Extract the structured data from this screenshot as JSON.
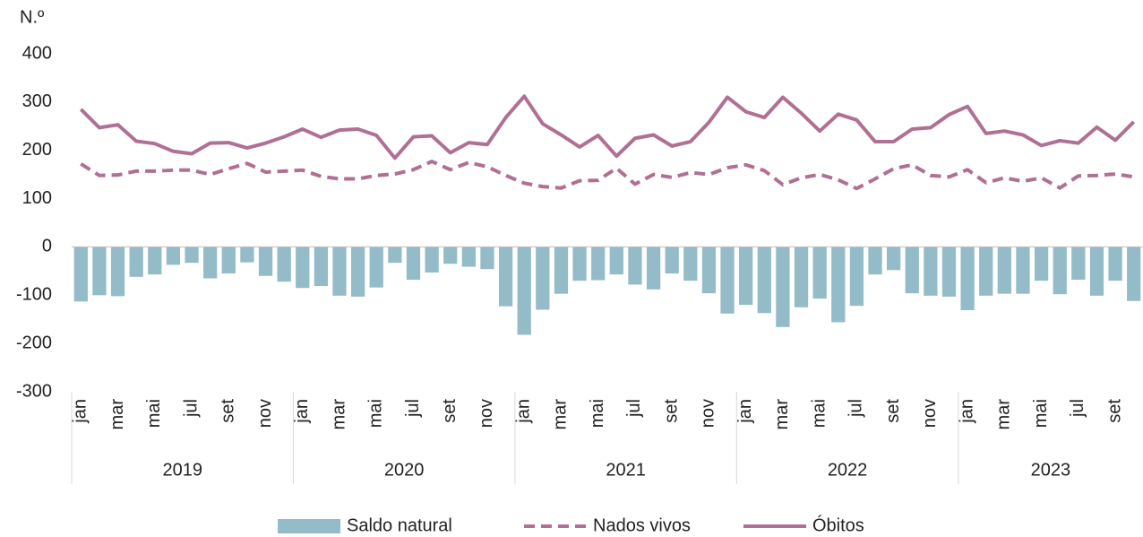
{
  "chart_data": {
    "type": "bar-line",
    "y_label": "N.º",
    "categories": [
      "jan",
      null,
      "mar",
      null,
      "mai",
      null,
      "jul",
      null,
      "set",
      null,
      "nov",
      null,
      "jan",
      null,
      "mar",
      null,
      "mai",
      null,
      "jul",
      null,
      "set",
      null,
      "nov",
      null,
      "jan",
      null,
      "mar",
      null,
      "mai",
      null,
      "jul",
      null,
      "set",
      null,
      "nov",
      null,
      "jan",
      null,
      "mar",
      null,
      "mai",
      null,
      "jul",
      null,
      "set",
      null,
      "nov",
      null,
      "jan",
      null,
      "mar",
      null,
      "mai",
      null,
      "jul",
      null,
      "set",
      null
    ],
    "years": [
      "2019",
      "2020",
      "2021",
      "2022",
      "2023"
    ],
    "series": [
      {
        "name": "Saldo natural",
        "type": "bar",
        "color": "#93bcc8",
        "values": [
          -113,
          -100,
          -102,
          -62,
          -57,
          -37,
          -33,
          -65,
          -55,
          -32,
          -60,
          -72,
          -85,
          -81,
          -101,
          -103,
          -84,
          -33,
          -68,
          -53,
          -35,
          -41,
          -46,
          -123,
          -182,
          -130,
          -97,
          -70,
          -69,
          -57,
          -78,
          -88,
          -55,
          -70,
          -96,
          -138,
          -120,
          -137,
          -166,
          -125,
          -107,
          -156,
          -122,
          -57,
          -48,
          -96,
          -101,
          -103,
          -131,
          -101,
          -97,
          -97,
          -70,
          -98,
          -68,
          -101,
          -70,
          -112
        ]
      },
      {
        "name": "Nados vivos",
        "type": "line",
        "dash": true,
        "color": "#b07093",
        "values": [
          172,
          148,
          149,
          157,
          157,
          159,
          159,
          150,
          162,
          173,
          155,
          157,
          159,
          146,
          141,
          141,
          148,
          151,
          160,
          177,
          160,
          175,
          166,
          148,
          132,
          125,
          122,
          137,
          138,
          163,
          130,
          150,
          144,
          154,
          150,
          164,
          170,
          158,
          129,
          143,
          150,
          139,
          121,
          141,
          162,
          170,
          148,
          145,
          160,
          133,
          143,
          136,
          143,
          122,
          147,
          148,
          151,
          145
        ]
      },
      {
        "name": "Óbitos",
        "type": "line",
        "dash": false,
        "color": "#b07093",
        "values": [
          285,
          247,
          253,
          219,
          214,
          198,
          193,
          215,
          216,
          205,
          215,
          228,
          244,
          227,
          242,
          244,
          231,
          184,
          228,
          230,
          195,
          216,
          212,
          268,
          312,
          255,
          232,
          207,
          231,
          188,
          225,
          232,
          209,
          218,
          258,
          310,
          280,
          268,
          310,
          277,
          240,
          275,
          263,
          218,
          218,
          244,
          247,
          274,
          291,
          235,
          240,
          232,
          210,
          220,
          215,
          248,
          221,
          259
        ]
      }
    ],
    "ylim": [
      -300,
      400
    ],
    "yticks": [
      -300,
      -200,
      -100,
      0,
      100,
      200,
      300,
      400
    ],
    "grid": false
  }
}
